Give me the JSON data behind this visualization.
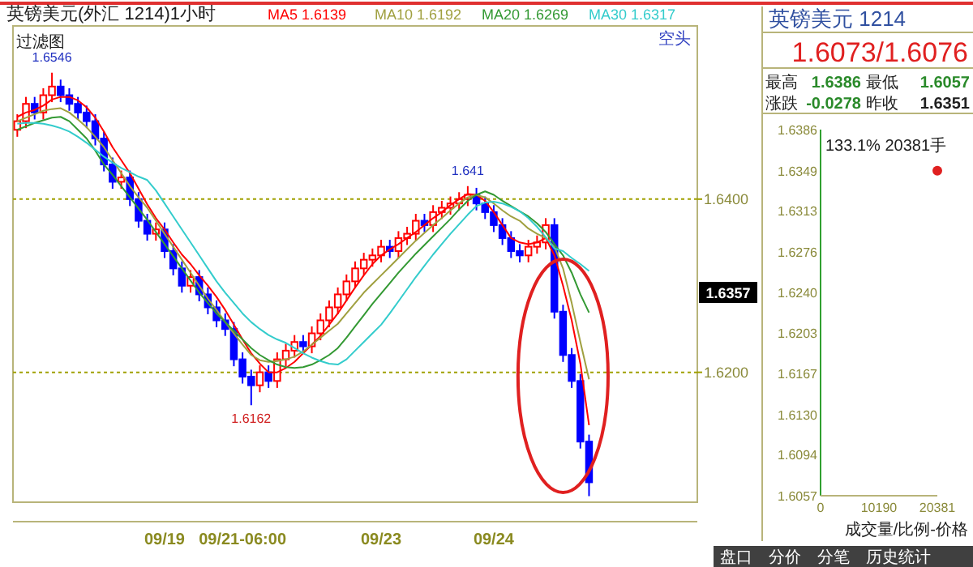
{
  "chart_data": [
    {
      "type": "candlestick",
      "title": "英镑美元(外汇 1214)1小时",
      "subtitle": "过滤图",
      "categories": [
        null,
        null,
        null,
        null,
        null,
        null,
        null,
        null,
        null,
        null,
        null,
        null,
        null,
        null,
        null,
        null,
        null,
        "09/19",
        null,
        null,
        null,
        null,
        null,
        null,
        null,
        null,
        "09/21-06:00",
        null,
        null,
        null,
        null,
        null,
        null,
        null,
        null,
        null,
        null,
        null,
        null,
        null,
        null,
        null,
        "09/23",
        null,
        null,
        null,
        null,
        null,
        null,
        null,
        null,
        null,
        null,
        null,
        null,
        "09/24",
        null,
        null,
        null,
        null,
        null,
        null,
        null,
        null,
        null,
        null,
        null
      ],
      "ohlc": [
        [
          1.648,
          1.6498,
          1.6472,
          1.649
        ],
        [
          1.649,
          1.6518,
          1.6482,
          1.651
        ],
        [
          1.651,
          1.6518,
          1.6492,
          1.65
        ],
        [
          1.65,
          1.6528,
          1.6492,
          1.652
        ],
        [
          1.652,
          1.6546,
          1.6512,
          1.653
        ],
        [
          1.653,
          1.6538,
          1.6512,
          1.652
        ],
        [
          1.652,
          1.6528,
          1.6502,
          1.651
        ],
        [
          1.651,
          1.6518,
          1.6492,
          1.65
        ],
        [
          1.65,
          1.6508,
          1.6482,
          1.649
        ],
        [
          1.649,
          1.6498,
          1.6462,
          1.647
        ],
        [
          1.647,
          1.6478,
          1.6432,
          1.644
        ],
        [
          1.644,
          1.6448,
          1.6412,
          1.642
        ],
        [
          1.642,
          1.6433,
          1.6412,
          1.6425
        ],
        [
          1.6425,
          1.6433,
          1.6392,
          1.64
        ],
        [
          1.64,
          1.6408,
          1.6367,
          1.6375
        ],
        [
          1.6375,
          1.6383,
          1.6352,
          1.636
        ],
        [
          1.636,
          1.6373,
          1.6352,
          1.6365
        ],
        [
          1.6365,
          1.6373,
          1.6332,
          1.634
        ],
        [
          1.634,
          1.6348,
          1.6312,
          1.632
        ],
        [
          1.632,
          1.6328,
          1.6292,
          1.63
        ],
        [
          1.63,
          1.6318,
          1.6292,
          1.631
        ],
        [
          1.631,
          1.6318,
          1.6282,
          1.629
        ],
        [
          1.629,
          1.6298,
          1.6267,
          1.6275
        ],
        [
          1.6275,
          1.6283,
          1.6252,
          1.626
        ],
        [
          1.626,
          1.6268,
          1.6242,
          1.625
        ],
        [
          1.625,
          1.6258,
          1.6207,
          1.6215
        ],
        [
          1.6215,
          1.6223,
          1.6187,
          1.6195
        ],
        [
          1.6195,
          1.6203,
          1.6162,
          1.6185
        ],
        [
          1.6185,
          1.6208,
          1.6177,
          1.62
        ],
        [
          1.62,
          1.6208,
          1.6182,
          1.619
        ],
        [
          1.619,
          1.6223,
          1.6182,
          1.6215
        ],
        [
          1.6215,
          1.6233,
          1.6207,
          1.6225
        ],
        [
          1.6225,
          1.6243,
          1.6217,
          1.6235
        ],
        [
          1.6235,
          1.6243,
          1.6222,
          1.623
        ],
        [
          1.623,
          1.6253,
          1.6222,
          1.6245
        ],
        [
          1.6245,
          1.6268,
          1.6237,
          1.626
        ],
        [
          1.626,
          1.6283,
          1.6252,
          1.6275
        ],
        [
          1.6275,
          1.6298,
          1.6267,
          1.629
        ],
        [
          1.629,
          1.6313,
          1.6282,
          1.6305
        ],
        [
          1.6305,
          1.6328,
          1.6297,
          1.632
        ],
        [
          1.632,
          1.6338,
          1.6312,
          1.633
        ],
        [
          1.633,
          1.6343,
          1.6322,
          1.6335
        ],
        [
          1.6335,
          1.6353,
          1.6327,
          1.6345
        ],
        [
          1.6345,
          1.6353,
          1.6332,
          1.634
        ],
        [
          1.634,
          1.6363,
          1.6332,
          1.6355
        ],
        [
          1.6355,
          1.6368,
          1.6347,
          1.636
        ],
        [
          1.636,
          1.6383,
          1.6352,
          1.6375
        ],
        [
          1.6375,
          1.6383,
          1.6362,
          1.637
        ],
        [
          1.637,
          1.6393,
          1.6362,
          1.6385
        ],
        [
          1.6385,
          1.6398,
          1.6377,
          1.639
        ],
        [
          1.639,
          1.6403,
          1.6382,
          1.6395
        ],
        [
          1.6395,
          1.6408,
          1.6387,
          1.64
        ],
        [
          1.64,
          1.6415,
          1.6392,
          1.6405
        ],
        [
          1.6405,
          1.6413,
          1.6387,
          1.6395
        ],
        [
          1.6395,
          1.6403,
          1.6377,
          1.6385
        ],
        [
          1.6385,
          1.6393,
          1.6362,
          1.637
        ],
        [
          1.637,
          1.6378,
          1.6347,
          1.6355
        ],
        [
          1.6355,
          1.6363,
          1.6332,
          1.634
        ],
        [
          1.634,
          1.6348,
          1.6327,
          1.6335
        ],
        [
          1.6335,
          1.6353,
          1.6327,
          1.6345
        ],
        [
          1.6345,
          1.6358,
          1.6337,
          1.635
        ],
        [
          1.635,
          1.6378,
          1.6342,
          1.637
        ],
        [
          1.637,
          1.6378,
          1.6262,
          1.627
        ],
        [
          1.627,
          1.6278,
          1.6212,
          1.622
        ],
        [
          1.622,
          1.6228,
          1.6182,
          1.619
        ],
        [
          1.619,
          1.6198,
          1.6112,
          1.612
        ],
        [
          1.612,
          1.6128,
          1.6057,
          1.6073
        ]
      ],
      "colors": [
        "#ff0000",
        "#ff0000",
        "#0000ff",
        "#ff0000",
        "#ff0000",
        "#0000ff",
        "#0000ff",
        "#0000ff",
        "#0000ff",
        "#0000ff",
        "#0000ff",
        "#0000ff",
        "#ff0000",
        "#0000ff",
        "#0000ff",
        "#0000ff",
        "#ff0000",
        "#0000ff",
        "#0000ff",
        "#0000ff",
        "#ff0000",
        "#0000ff",
        "#0000ff",
        "#0000ff",
        "#0000ff",
        "#0000ff",
        "#0000ff",
        "#0000ff",
        "#ff0000",
        "#0000ff",
        "#ff0000",
        "#ff0000",
        "#ff0000",
        "#0000ff",
        "#ff0000",
        "#ff0000",
        "#ff0000",
        "#ff0000",
        "#ff0000",
        "#ff0000",
        "#ff0000",
        "#ff0000",
        "#ff0000",
        "#0000ff",
        "#ff0000",
        "#ff0000",
        "#ff0000",
        "#0000ff",
        "#ff0000",
        "#ff0000",
        "#ff0000",
        "#ff0000",
        "#ff0000",
        "#0000ff",
        "#0000ff",
        "#0000ff",
        "#0000ff",
        "#0000ff",
        "#0000ff",
        "#ff0000",
        "#ff0000",
        "#ff0000",
        "#0000ff",
        "#0000ff",
        "#0000ff",
        "#0000ff",
        "#0000ff"
      ],
      "series": [
        {
          "name": "MA5 1.6139",
          "type": "line",
          "color": "#ff0000",
          "values": [
            1.6495,
            1.65,
            1.6503,
            1.6508,
            1.6515,
            1.6518,
            1.6518,
            1.6514,
            1.6506,
            1.6494,
            1.6478,
            1.646,
            1.6445,
            1.643,
            1.6412,
            1.6394,
            1.6378,
            1.6365,
            1.635,
            1.6336,
            1.6325,
            1.6312,
            1.63,
            1.6287,
            1.6272,
            1.6255,
            1.6238,
            1.6222,
            1.621,
            1.62,
            1.62,
            1.6205,
            1.6212,
            1.6222,
            1.6232,
            1.6242,
            1.6255,
            1.6268,
            1.6283,
            1.6298,
            1.6312,
            1.6325,
            1.6335,
            1.6342,
            1.6348,
            1.6355,
            1.6362,
            1.637,
            1.6378,
            1.6385,
            1.6393,
            1.64,
            1.6406,
            1.6405,
            1.6398,
            1.6385,
            1.637,
            1.6355,
            1.635,
            1.6348,
            1.635,
            1.6355,
            1.6335,
            1.63,
            1.626,
            1.621,
            1.6139
          ]
        },
        {
          "name": "MA10 1.6192",
          "type": "line",
          "color": "#a0a040",
          "values": [
            1.649,
            1.6494,
            1.6498,
            1.6502,
            1.6504,
            1.6505,
            1.65,
            1.6492,
            1.6483,
            1.6472,
            1.646,
            1.6445,
            1.643,
            1.6415,
            1.6402,
            1.639,
            1.6375,
            1.636,
            1.6345,
            1.633,
            1.6315,
            1.63,
            1.6285,
            1.6272,
            1.6258,
            1.6245,
            1.6232,
            1.622,
            1.6214,
            1.6212,
            1.6213,
            1.6215,
            1.6218,
            1.6224,
            1.6232,
            1.624,
            1.6248,
            1.6256,
            1.6268,
            1.628,
            1.6292,
            1.6302,
            1.6312,
            1.6322,
            1.6332,
            1.6342,
            1.6352,
            1.6361,
            1.637,
            1.6378,
            1.6387,
            1.6395,
            1.6402,
            1.6405,
            1.6402,
            1.6395,
            1.6387,
            1.638,
            1.6375,
            1.6366,
            1.636,
            1.6355,
            1.6345,
            1.632,
            1.628,
            1.6235,
            1.6192
          ]
        },
        {
          "name": "MA20 1.6269",
          "type": "line",
          "color": "#339933",
          "values": [
            1.648,
            1.6484,
            1.6488,
            1.6491,
            1.6494,
            1.6495,
            1.649,
            1.648,
            1.647,
            1.6456,
            1.644,
            1.6428,
            1.6415,
            1.6402,
            1.6389,
            1.6376,
            1.6362,
            1.6348,
            1.6334,
            1.632,
            1.6306,
            1.6292,
            1.628,
            1.6268,
            1.6258,
            1.6248,
            1.6238,
            1.6228,
            1.622,
            1.6214,
            1.6209,
            1.6206,
            1.6205,
            1.6206,
            1.6209,
            1.6214,
            1.622,
            1.6228,
            1.624,
            1.6253,
            1.6266,
            1.6279,
            1.6291,
            1.6303,
            1.6315,
            1.6326,
            1.6337,
            1.6347,
            1.6357,
            1.6367,
            1.6377,
            1.6388,
            1.6398,
            1.6405,
            1.6409,
            1.6405,
            1.6398,
            1.6392,
            1.6386,
            1.638,
            1.6372,
            1.6362,
            1.6348,
            1.6335,
            1.6315,
            1.629,
            1.6269
          ]
        },
        {
          "name": "MA30 1.6317",
          "type": "line",
          "color": "#33cccc",
          "values": [
            1.6487,
            1.6488,
            1.6488,
            1.6487,
            1.6485,
            1.6482,
            1.6478,
            1.6472,
            1.6465,
            1.6457,
            1.6449,
            1.6442,
            1.6436,
            1.6431,
            1.6426,
            1.6422,
            1.641,
            1.6395,
            1.638,
            1.6365,
            1.635,
            1.6335,
            1.632,
            1.6305,
            1.6292,
            1.628,
            1.6268,
            1.6258,
            1.625,
            1.6243,
            1.6238,
            1.6234,
            1.6228,
            1.6222,
            1.6217,
            1.6213,
            1.621,
            1.6209,
            1.6215,
            1.6225,
            1.6235,
            1.6245,
            1.6255,
            1.6268,
            1.6282,
            1.6296,
            1.631,
            1.6323,
            1.6336,
            1.6348,
            1.636,
            1.6371,
            1.6382,
            1.6392,
            1.6396,
            1.6397,
            1.6395,
            1.6391,
            1.6386,
            1.6378,
            1.6368,
            1.6356,
            1.6343,
            1.634,
            1.6332,
            1.6325,
            1.6317
          ]
        }
      ],
      "ylim": [
        1.605,
        1.66
      ],
      "yticks": [
        {
          "value": 1.64,
          "label": "1.6400"
        },
        {
          "value": 1.62,
          "label": "1.6200"
        }
      ],
      "grid": "y",
      "legend": "top",
      "annotations": [
        "空头",
        "1.6357",
        {
          "text": "1.6546",
          "y": 1.6546
        },
        {
          "text": "1.6162",
          "y": 1.6162
        },
        {
          "text": "1.641",
          "y": 1.6415
        }
      ]
    },
    {
      "type": "scatter",
      "title": "英镑美元 1214",
      "x": [
        20381
      ],
      "values": [
        1.6349
      ],
      "color": "#e02020",
      "marker": "circle",
      "ylim": [
        1.6057,
        1.6386
      ],
      "yticks": [
        1.6386,
        1.6349,
        1.6313,
        1.6276,
        {
          "value": 1.624,
          "label": "1.6240"
        },
        1.6203,
        1.6167,
        {
          "value": 1.613,
          "label": "1.6130"
        },
        1.6094,
        1.6057
      ],
      "xlim": [
        0,
        20381
      ],
      "xticks": [
        0,
        10190,
        20381
      ],
      "annotations": [
        "1.6073/1.6076",
        "最高",
        "1.6386",
        "最低",
        "1.6057",
        "涨跌",
        "-0.0278",
        "昨收",
        "1.6351",
        "133.1% 20381手",
        "成交量/比例-价格",
        "盘口",
        "分价",
        "分笔",
        "历史统计"
      ]
    }
  ]
}
